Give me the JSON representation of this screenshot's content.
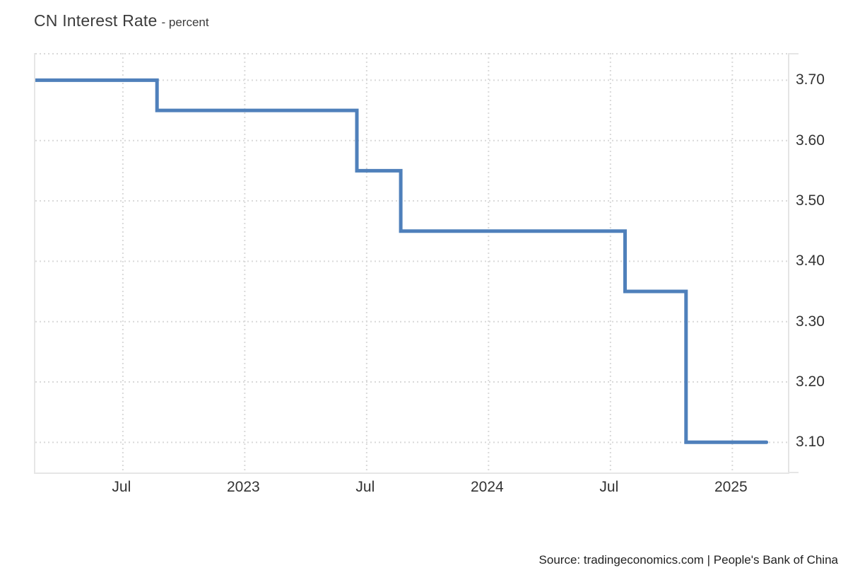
{
  "header": {
    "title": "CN Interest Rate",
    "subtitle": "- percent"
  },
  "footer": {
    "source": "Source: tradingeconomics.com | People's Bank of China"
  },
  "colors": {
    "line": "#4f80bb",
    "grid": "#d9d9d9",
    "axis_border": "#e6e6e6",
    "tick_text": "#333333",
    "title_text": "#3c3c3c",
    "source_text": "#222222"
  },
  "chart_data": {
    "type": "line",
    "step": true,
    "title": "CN Interest Rate",
    "ylabel_units": "percent",
    "grid": "dotted",
    "legend": "none",
    "y_axis_side": "right",
    "xlim": [
      2022.141,
      2025.228
    ],
    "ylim": [
      3.05,
      3.745
    ],
    "series": [
      {
        "name": "CN Interest Rate",
        "points": [
          [
            2022.14,
            3.7
          ],
          [
            2022.64,
            3.65
          ],
          [
            2023.46,
            3.55
          ],
          [
            2023.64,
            3.45
          ],
          [
            2024.56,
            3.35
          ],
          [
            2024.81,
            3.1
          ],
          [
            2025.14,
            3.1
          ]
        ]
      }
    ],
    "steps_readable": [
      {
        "from": "Feb 2022",
        "to": "Aug 2022",
        "value": 3.7
      },
      {
        "from": "Aug 2022",
        "to": "Jun 2023",
        "value": 3.65
      },
      {
        "from": "Jun 2023",
        "to": "Aug 2023",
        "value": 3.55
      },
      {
        "from": "Aug 2023",
        "to": "Jul 2024",
        "value": 3.45
      },
      {
        "from": "Jul 2024",
        "to": "Oct 2024",
        "value": 3.35
      },
      {
        "from": "Oct 2024",
        "to": "Feb 2025",
        "value": 3.1
      }
    ],
    "x_ticks": [
      {
        "t": 2022.5,
        "label": "Jul"
      },
      {
        "t": 2023.0,
        "label": "2023"
      },
      {
        "t": 2023.5,
        "label": "Jul"
      },
      {
        "t": 2024.0,
        "label": "2024"
      },
      {
        "t": 2024.5,
        "label": "Jul"
      },
      {
        "t": 2025.0,
        "label": "2025"
      }
    ],
    "y_ticks": [
      {
        "v": 3.7,
        "label": "3.70"
      },
      {
        "v": 3.6,
        "label": "3.60"
      },
      {
        "v": 3.5,
        "label": "3.50"
      },
      {
        "v": 3.4,
        "label": "3.40"
      },
      {
        "v": 3.3,
        "label": "3.30"
      },
      {
        "v": 3.2,
        "label": "3.20"
      },
      {
        "v": 3.1,
        "label": "3.10"
      }
    ]
  }
}
